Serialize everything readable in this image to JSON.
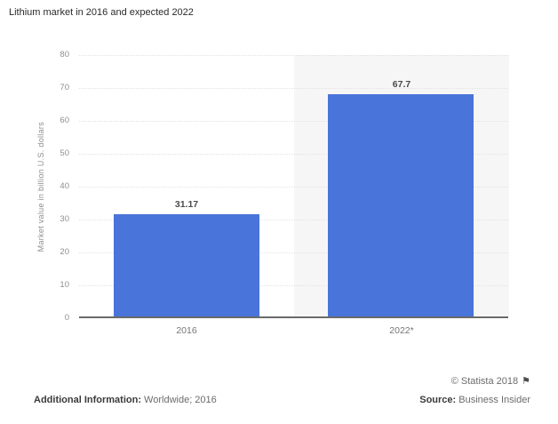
{
  "page": {
    "title": "Lithium market in 2016 and expected 2022"
  },
  "chart_data": {
    "type": "bar",
    "title": "Lithium market in 2016 and expected 2022",
    "categories": [
      "2016",
      "2022*"
    ],
    "values": [
      31.17,
      67.7
    ],
    "value_labels": [
      "31.17",
      "67.7"
    ],
    "xlabel": "",
    "ylabel": "Market value in billion U.S. dollars",
    "ylim": [
      0,
      80
    ],
    "ytick_step": 10,
    "grid": "horizontal-dotted",
    "legend": "none",
    "bar_color": "#4974d9",
    "plot_band_color": "#f6f6f6",
    "highlight_band_category_index": 1
  },
  "footer": {
    "copyright": "© Statista 2018",
    "flag_icon": "⚑",
    "additional_info_label": "Additional Information:",
    "additional_info_value": "Worldwide; 2016",
    "source_label": "Source:",
    "source_value": "Business Insider"
  }
}
